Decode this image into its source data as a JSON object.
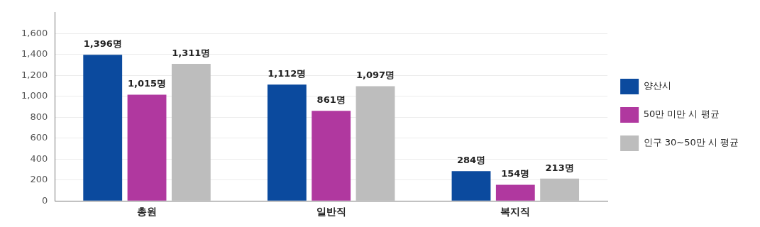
{
  "chart_data": {
    "type": "bar",
    "categories": [
      "총원",
      "일반직",
      "복지직"
    ],
    "series": [
      {
        "name": "양산시",
        "color": "#0b4a9e",
        "values": [
          1396,
          1112,
          284
        ],
        "value_labels": [
          "1,396명",
          "1,112명",
          "284명"
        ]
      },
      {
        "name": "50만 미만 시 평균",
        "color": "#b0389f",
        "values": [
          1015,
          861,
          154
        ],
        "value_labels": [
          "1,015명",
          "861명",
          "154명"
        ]
      },
      {
        "name": "인구 30~50만 시 평균",
        "color": "#bdbdbd",
        "values": [
          1311,
          1097,
          213
        ],
        "value_labels": [
          "1,311명",
          "1,097명",
          "213명"
        ]
      }
    ],
    "ylim": [
      0,
      1800
    ],
    "yticks": [
      {
        "value": 0,
        "label": "0"
      },
      {
        "value": 200,
        "label": "200"
      },
      {
        "value": 400,
        "label": "400"
      },
      {
        "value": 600,
        "label": "600"
      },
      {
        "value": 800,
        "label": "800"
      },
      {
        "value": 1000,
        "label": "1,000"
      },
      {
        "value": 1200,
        "label": "1,200"
      },
      {
        "value": 1400,
        "label": "1,400"
      },
      {
        "value": 1600,
        "label": "1,600"
      }
    ],
    "grid": "y",
    "legend": "right"
  }
}
